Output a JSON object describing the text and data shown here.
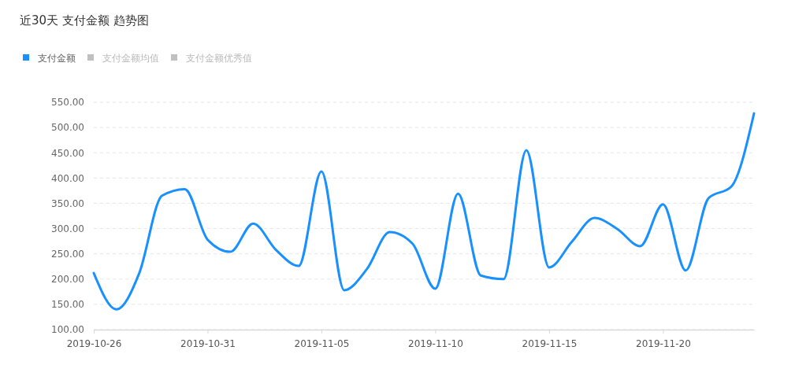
{
  "chart_data": {
    "type": "line",
    "title": "近30天 支付金额 趋势图",
    "x": [
      "2019-10-26",
      "2019-10-27",
      "2019-10-28",
      "2019-10-29",
      "2019-10-30",
      "2019-10-31",
      "2019-11-01",
      "2019-11-02",
      "2019-11-03",
      "2019-11-04",
      "2019-11-05",
      "2019-11-06",
      "2019-11-07",
      "2019-11-08",
      "2019-11-09",
      "2019-11-10",
      "2019-11-11",
      "2019-11-12",
      "2019-11-13",
      "2019-11-14",
      "2019-11-15",
      "2019-11-16",
      "2019-11-17",
      "2019-11-18",
      "2019-11-19",
      "2019-11-20",
      "2019-11-21",
      "2019-11-22",
      "2019-11-23",
      "2019-11-24"
    ],
    "series": [
      {
        "name": "支付金额",
        "color": "#1890ff",
        "values": [
          212,
          140,
          212,
          365,
          378,
          278,
          254,
          310,
          258,
          226,
          413,
          178,
          220,
          293,
          270,
          181,
          369,
          207,
          200,
          455,
          223,
          274,
          321,
          299,
          265,
          348,
          217,
          360,
          383,
          528
        ]
      },
      {
        "name": "支付金额均值",
        "color": "#c0c0c0",
        "values": [
          null,
          null,
          null,
          null,
          null,
          null,
          null,
          null,
          null,
          null,
          null,
          null,
          null,
          null,
          null,
          null,
          null,
          null,
          null,
          null,
          null,
          null,
          null,
          null,
          null,
          null,
          null,
          null,
          null,
          null
        ]
      },
      {
        "name": "支付金额优秀值",
        "color": "#c0c0c0",
        "values": [
          null,
          null,
          null,
          null,
          null,
          null,
          null,
          null,
          null,
          null,
          null,
          null,
          null,
          null,
          null,
          null,
          null,
          null,
          null,
          null,
          null,
          null,
          null,
          null,
          null,
          null,
          null,
          null,
          null,
          null
        ]
      }
    ],
    "xlim": [
      "2019-10-26",
      "2019-11-24"
    ],
    "xticks": [
      "2019-10-26",
      "2019-10-31",
      "2019-11-05",
      "2019-11-10",
      "2019-11-15",
      "2019-11-20"
    ],
    "ylim": [
      100,
      550
    ],
    "yticks": [
      {
        "value": 100,
        "label": "100.00"
      },
      {
        "value": 150,
        "label": "150.00"
      },
      {
        "value": 200,
        "label": "200.00"
      },
      {
        "value": 250,
        "label": "250.00"
      },
      {
        "value": 300,
        "label": "300.00"
      },
      {
        "value": 350,
        "label": "350.00"
      },
      {
        "value": 400,
        "label": "400.00"
      },
      {
        "value": 450,
        "label": "450.00"
      },
      {
        "value": 500,
        "label": "500.00"
      },
      {
        "value": 550,
        "label": "550.00"
      }
    ],
    "grid": "y",
    "legend": "top left"
  }
}
